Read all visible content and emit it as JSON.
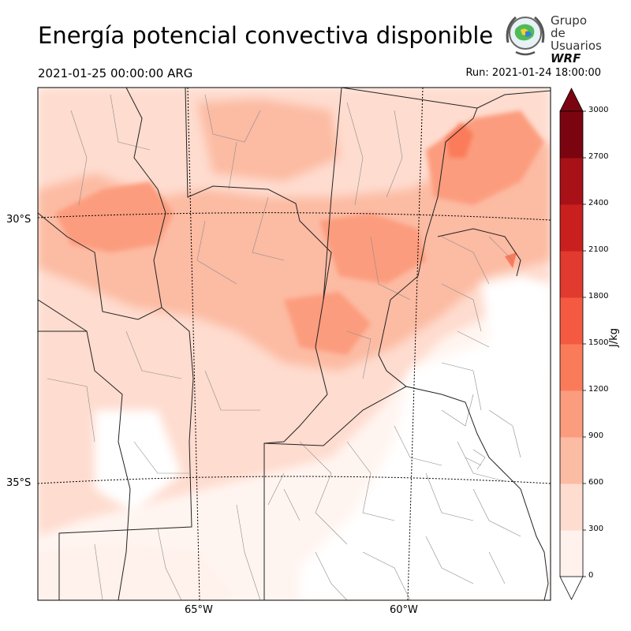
{
  "title": "Energía potencial convectiva disponible",
  "valid_time": "2021-01-25 00:00:00 ARG",
  "run_time": "Run: 2021-01-24 18:00:00",
  "logo": {
    "line1": "Grupo de",
    "line2": "Usuarios",
    "line3": "WRF"
  },
  "map": {
    "lat_labels": [
      "30°S",
      "35°S"
    ],
    "lon_labels": [
      "65°W",
      "60°W"
    ]
  },
  "colorbar": {
    "unit": "J/kg",
    "ticks": [
      "0",
      "300",
      "600",
      "900",
      "1200",
      "1500",
      "1800",
      "2100",
      "2400",
      "2700",
      "3000"
    ],
    "colors": [
      "#fff1eb",
      "#fedccf",
      "#fcbba3",
      "#fc9c7e",
      "#fa7b5a",
      "#f45a41",
      "#e13a2e",
      "#c9201f",
      "#a81117",
      "#7a0510"
    ]
  }
}
